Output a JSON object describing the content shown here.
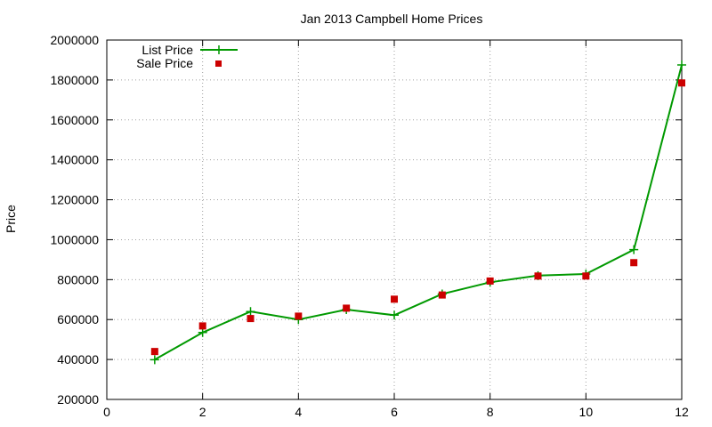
{
  "chart_data": {
    "type": "line",
    "title": "Jan 2013 Campbell Home Prices",
    "xlabel": "",
    "ylabel": "Price",
    "xlim": [
      0,
      12
    ],
    "ylim": [
      200000,
      2000000
    ],
    "x_ticks": [
      "0",
      "2",
      "4",
      "6",
      "8",
      "10",
      "12"
    ],
    "y_ticks": [
      "200000",
      "400000",
      "600000",
      "800000",
      "1000000",
      "1200000",
      "1400000",
      "1600000",
      "1800000",
      "2000000"
    ],
    "grid": true,
    "legend_position": "top-left",
    "x": [
      1,
      2,
      3,
      4,
      5,
      6,
      7,
      8,
      9,
      10,
      11,
      12
    ],
    "series": [
      {
        "name": "List Price",
        "style": "line+cross",
        "color": "#009900",
        "values": [
          399000,
          535000,
          640000,
          600000,
          650000,
          622000,
          728000,
          787000,
          820000,
          828000,
          950000,
          1875000
        ]
      },
      {
        "name": "Sale Price",
        "style": "square-points",
        "color": "#cc0000",
        "values": [
          440000,
          568000,
          605000,
          617000,
          657000,
          702000,
          723000,
          793000,
          818000,
          818000,
          885000,
          1785000
        ]
      }
    ]
  }
}
